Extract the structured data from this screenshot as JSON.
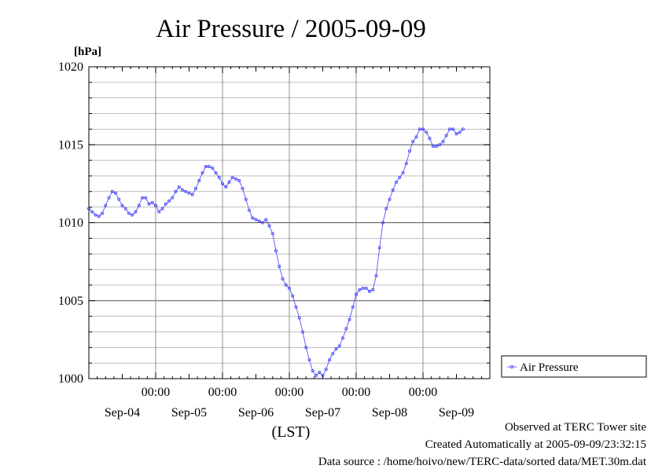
{
  "chart_data": {
    "type": "line",
    "title": "Air Pressure / 2005-09-09",
    "ylabel": "[hPa]",
    "xlabel": "(LST)",
    "ylim": [
      1000,
      1020
    ],
    "xlim": [
      0,
      6
    ],
    "grid": true,
    "legend_position": "right",
    "y_ticks": [
      {
        "value": 1000,
        "label": "1000"
      },
      {
        "value": 1005,
        "label": "1005"
      },
      {
        "value": 1010,
        "label": "1010"
      },
      {
        "value": 1015,
        "label": "1015"
      },
      {
        "value": 1020,
        "label": "1020"
      }
    ],
    "x_ticks": [
      {
        "value": 1,
        "label": "00:00"
      },
      {
        "value": 2,
        "label": "00:00"
      },
      {
        "value": 3,
        "label": "00:00"
      },
      {
        "value": 4,
        "label": "00:00"
      },
      {
        "value": 5,
        "label": "00:00"
      }
    ],
    "x_day_labels": [
      {
        "value": 0.5,
        "label": "Sep-04"
      },
      {
        "value": 1.5,
        "label": "Sep-05"
      },
      {
        "value": 2.5,
        "label": "Sep-06"
      },
      {
        "value": 3.5,
        "label": "Sep-07"
      },
      {
        "value": 4.5,
        "label": "Sep-08"
      },
      {
        "value": 5.5,
        "label": "Sep-09"
      }
    ],
    "series": [
      {
        "name": "Air Pressure",
        "color": "#4040ff",
        "points": [
          [
            0.0,
            1010.9
          ],
          [
            0.05,
            1010.7
          ],
          [
            0.1,
            1010.5
          ],
          [
            0.15,
            1010.4
          ],
          [
            0.2,
            1010.6
          ],
          [
            0.25,
            1011.1
          ],
          [
            0.3,
            1011.6
          ],
          [
            0.35,
            1012.0
          ],
          [
            0.4,
            1011.9
          ],
          [
            0.45,
            1011.5
          ],
          [
            0.5,
            1011.1
          ],
          [
            0.55,
            1010.9
          ],
          [
            0.6,
            1010.6
          ],
          [
            0.65,
            1010.5
          ],
          [
            0.7,
            1010.7
          ],
          [
            0.75,
            1011.1
          ],
          [
            0.8,
            1011.6
          ],
          [
            0.85,
            1011.6
          ],
          [
            0.9,
            1011.2
          ],
          [
            0.95,
            1011.3
          ],
          [
            1.0,
            1011.1
          ],
          [
            1.05,
            1010.7
          ],
          [
            1.1,
            1010.9
          ],
          [
            1.15,
            1011.2
          ],
          [
            1.2,
            1011.4
          ],
          [
            1.25,
            1011.6
          ],
          [
            1.3,
            1012.0
          ],
          [
            1.35,
            1012.3
          ],
          [
            1.4,
            1012.1
          ],
          [
            1.45,
            1012.0
          ],
          [
            1.5,
            1011.9
          ],
          [
            1.55,
            1011.8
          ],
          [
            1.6,
            1012.2
          ],
          [
            1.65,
            1012.7
          ],
          [
            1.7,
            1013.2
          ],
          [
            1.75,
            1013.6
          ],
          [
            1.8,
            1013.6
          ],
          [
            1.85,
            1013.5
          ],
          [
            1.9,
            1013.2
          ],
          [
            1.95,
            1012.9
          ],
          [
            2.0,
            1012.5
          ],
          [
            2.05,
            1012.3
          ],
          [
            2.1,
            1012.6
          ],
          [
            2.15,
            1012.9
          ],
          [
            2.2,
            1012.8
          ],
          [
            2.25,
            1012.7
          ],
          [
            2.3,
            1012.2
          ],
          [
            2.35,
            1011.5
          ],
          [
            2.4,
            1010.8
          ],
          [
            2.45,
            1010.3
          ],
          [
            2.5,
            1010.2
          ],
          [
            2.55,
            1010.1
          ],
          [
            2.6,
            1010.0
          ],
          [
            2.65,
            1010.2
          ],
          [
            2.7,
            1009.8
          ],
          [
            2.75,
            1009.3
          ],
          [
            2.8,
            1008.2
          ],
          [
            2.85,
            1007.2
          ],
          [
            2.9,
            1006.4
          ],
          [
            2.95,
            1006.0
          ],
          [
            3.0,
            1005.8
          ],
          [
            3.05,
            1005.3
          ],
          [
            3.1,
            1004.6
          ],
          [
            3.15,
            1003.9
          ],
          [
            3.2,
            1003.0
          ],
          [
            3.25,
            1002.0
          ],
          [
            3.3,
            1001.2
          ],
          [
            3.35,
            1000.5
          ],
          [
            3.4,
            1000.2
          ],
          [
            3.45,
            1000.4
          ],
          [
            3.5,
            1000.2
          ],
          [
            3.55,
            1000.6
          ],
          [
            3.6,
            1001.2
          ],
          [
            3.65,
            1001.6
          ],
          [
            3.7,
            1001.9
          ],
          [
            3.75,
            1002.1
          ],
          [
            3.8,
            1002.6
          ],
          [
            3.85,
            1003.2
          ],
          [
            3.9,
            1003.8
          ],
          [
            3.95,
            1004.6
          ],
          [
            4.0,
            1005.4
          ],
          [
            4.05,
            1005.7
          ],
          [
            4.1,
            1005.8
          ],
          [
            4.15,
            1005.8
          ],
          [
            4.2,
            1005.6
          ],
          [
            4.25,
            1005.7
          ],
          [
            4.3,
            1006.6
          ],
          [
            4.35,
            1008.4
          ],
          [
            4.4,
            1010.0
          ],
          [
            4.45,
            1010.9
          ],
          [
            4.5,
            1011.5
          ],
          [
            4.55,
            1012.1
          ],
          [
            4.6,
            1012.6
          ],
          [
            4.65,
            1012.9
          ],
          [
            4.7,
            1013.2
          ],
          [
            4.75,
            1013.8
          ],
          [
            4.8,
            1014.6
          ],
          [
            4.85,
            1015.2
          ],
          [
            4.9,
            1015.5
          ],
          [
            4.95,
            1016.0
          ],
          [
            5.0,
            1016.0
          ],
          [
            5.05,
            1015.8
          ],
          [
            5.1,
            1015.4
          ],
          [
            5.15,
            1014.9
          ],
          [
            5.2,
            1014.9
          ],
          [
            5.25,
            1015.0
          ],
          [
            5.3,
            1015.2
          ],
          [
            5.35,
            1015.6
          ],
          [
            5.4,
            1016.0
          ],
          [
            5.45,
            1016.0
          ],
          [
            5.5,
            1015.7
          ],
          [
            5.55,
            1015.8
          ],
          [
            5.6,
            1016.0
          ]
        ]
      }
    ]
  },
  "footer": {
    "observed": "Observed at TERC Tower site",
    "created": "Created Automatically at 2005-09-09/23:32:15",
    "source": "Data source : /home/hoivo/new/TERC-data/sorted  data/MET.30m.dat"
  }
}
